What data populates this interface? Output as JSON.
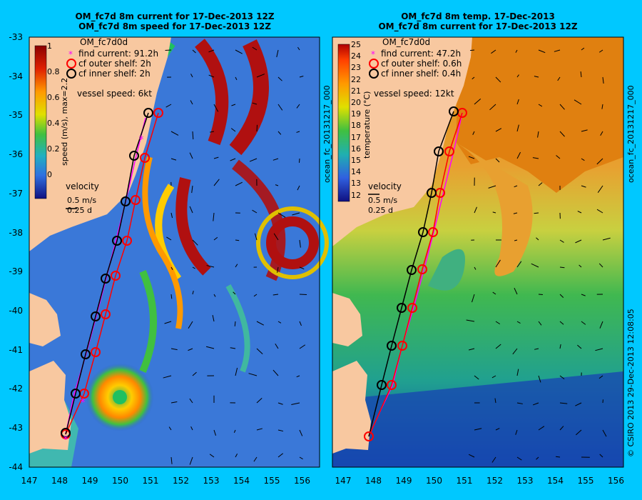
{
  "panels": [
    {
      "title1": "OM_fc7d 8m current for 17-Dec-2013 12Z",
      "title2": "OM_fc7d 8m speed for 17-Dec-2013 12Z",
      "colorbar": {
        "label": "speed (m/s),  max=2.2",
        "ticks": [
          "1",
          "0.8",
          "0.6",
          "0.4",
          "0.2",
          "0"
        ]
      },
      "model": "OM_fc7d0d",
      "legend": [
        "find current: 91.2h",
        "cf outer shelf: 2h",
        "cf inner shelf: 2h"
      ],
      "vessel_speed": "vessel speed: 6kt",
      "velocity": {
        "title": "velocity",
        "line1": "0.5 m/s",
        "line2": "0.25 d"
      }
    },
    {
      "title1": "OM_fc7d 8m temp. 17-Dec-2013",
      "title2": "OM_fc7d 8m current for 17-Dec-2013 12Z",
      "colorbar": {
        "label": "temperature (°C)",
        "ticks": [
          "25",
          "24",
          "23",
          "22",
          "21",
          "20",
          "19",
          "18",
          "17",
          "16",
          "15",
          "14",
          "13",
          "12"
        ]
      },
      "model": "OM_fc7d0d",
      "legend": [
        "find current: 47.2h",
        "cf outer shelf: 0.6h",
        "cf inner shelf: 0.4h"
      ],
      "vessel_speed": "vessel speed: 12kt",
      "velocity": {
        "title": "velocity",
        "line1": "0.5 m/s",
        "line2": "0.25 d"
      }
    }
  ],
  "y_ticks": [
    "-33",
    "-34",
    "-35",
    "-36",
    "-37",
    "-38",
    "-39",
    "-40",
    "-41",
    "-42",
    "-43",
    "-44"
  ],
  "x_ticks": [
    "147",
    "148",
    "149",
    "150",
    "151",
    "152",
    "153",
    "154",
    "155",
    "156"
  ],
  "side_text": {
    "left_panel_id": "ocean_fc_20131217_000",
    "right_panel_id": "ocean_fc_20131217_000",
    "credit": "© CSIRO 2013   29-Dec-2013 12:08:05"
  },
  "colors": {
    "background": "#00c8ff",
    "land": "#f8c8a0",
    "find_current": "#ff00ff",
    "outer_shelf": "#ff0000",
    "inner_shelf": "#000000"
  }
}
